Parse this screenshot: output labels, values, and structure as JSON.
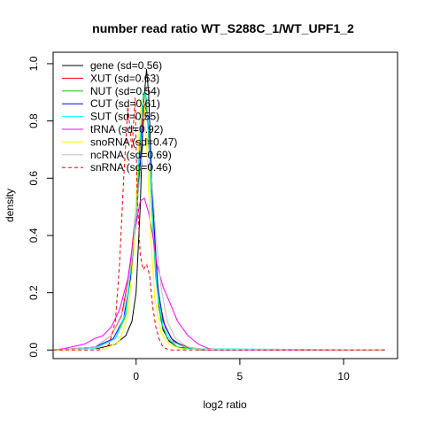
{
  "chart_data": {
    "type": "line",
    "title": "number read ratio WT_S288C_1/WT_UPF1_2",
    "xlabel": "log2 ratio",
    "ylabel": "density",
    "xlim": [
      -4.0,
      12.6
    ],
    "ylim": [
      -0.03,
      1.04
    ],
    "x_ticks": [
      0,
      5,
      10
    ],
    "y_ticks": [
      0.0,
      0.2,
      0.4,
      0.6,
      0.8,
      1.0
    ],
    "x_tick_labels": [
      "0",
      "5",
      "10"
    ],
    "y_tick_labels": [
      "0.0",
      "0.2",
      "0.4",
      "0.6",
      "0.8",
      "1.0"
    ],
    "legend_position": "top-left",
    "grid": false,
    "series": [
      {
        "name": "gene (sd=0.56)",
        "color": "#000000",
        "dash": false,
        "x": [
          -4.0,
          -2.0,
          -1.0,
          -0.5,
          -0.2,
          0.0,
          0.2,
          0.35,
          0.5,
          0.6,
          0.75,
          0.9,
          1.1,
          1.3,
          1.6,
          2.0,
          3.0,
          4.0,
          12.0
        ],
        "y": [
          0,
          0.003,
          0.02,
          0.05,
          0.1,
          0.2,
          0.5,
          0.85,
          0.98,
          0.9,
          0.6,
          0.35,
          0.15,
          0.07,
          0.03,
          0.01,
          0.003,
          0,
          0
        ]
      },
      {
        "name": "XUT (sd=0.63)",
        "color": "#ff0000",
        "dash": false,
        "x": [
          -4.0,
          -2.0,
          -1.2,
          -0.7,
          -0.3,
          0.0,
          0.2,
          0.4,
          0.55,
          0.7,
          0.9,
          1.1,
          1.4,
          1.8,
          2.5,
          3.5,
          12.0
        ],
        "y": [
          0,
          0.01,
          0.05,
          0.12,
          0.28,
          0.5,
          0.72,
          0.86,
          0.82,
          0.6,
          0.35,
          0.18,
          0.08,
          0.03,
          0.01,
          0,
          0
        ]
      },
      {
        "name": "NUT (sd=0.54)",
        "color": "#00cc00",
        "dash": false,
        "x": [
          -4.0,
          -2.0,
          -1.0,
          -0.5,
          -0.2,
          0.1,
          0.3,
          0.45,
          0.6,
          0.75,
          0.95,
          1.2,
          1.5,
          2.0,
          3.0,
          12.0
        ],
        "y": [
          0,
          0.005,
          0.04,
          0.12,
          0.3,
          0.6,
          0.86,
          0.9,
          0.75,
          0.5,
          0.25,
          0.1,
          0.04,
          0.01,
          0,
          0
        ]
      },
      {
        "name": "CUT (sd=0.61)",
        "color": "#0000ff",
        "dash": false,
        "x": [
          -4.0,
          -2.0,
          -1.1,
          -0.6,
          -0.2,
          0.1,
          0.35,
          0.55,
          0.7,
          0.85,
          1.05,
          1.3,
          1.7,
          2.3,
          3.5,
          12.0
        ],
        "y": [
          0,
          0.01,
          0.04,
          0.11,
          0.28,
          0.55,
          0.8,
          0.82,
          0.68,
          0.45,
          0.22,
          0.1,
          0.04,
          0.01,
          0,
          0
        ]
      },
      {
        "name": "SUT (sd=0.55)",
        "color": "#00ffff",
        "dash": false,
        "x": [
          -4.0,
          -2.0,
          -1.0,
          -0.5,
          -0.15,
          0.15,
          0.35,
          0.5,
          0.65,
          0.8,
          1.0,
          1.3,
          1.7,
          2.5,
          12.0
        ],
        "y": [
          0,
          0.005,
          0.04,
          0.13,
          0.35,
          0.7,
          0.9,
          0.88,
          0.7,
          0.45,
          0.22,
          0.08,
          0.03,
          0.005,
          0
        ]
      },
      {
        "name": "tRNA (sd=0.92)",
        "color": "#ff00ff",
        "dash": false,
        "x": [
          -4.0,
          -3.5,
          -2.5,
          -2.0,
          -1.6,
          -1.2,
          -0.8,
          -0.4,
          -0.1,
          0.2,
          0.4,
          0.6,
          0.8,
          1.0,
          1.3,
          1.6,
          2.0,
          2.5,
          3.0,
          3.5,
          4.0,
          12.0
        ],
        "y": [
          0,
          0.005,
          0.02,
          0.04,
          0.05,
          0.08,
          0.14,
          0.25,
          0.4,
          0.52,
          0.53,
          0.48,
          0.4,
          0.3,
          0.22,
          0.17,
          0.1,
          0.05,
          0.02,
          0.005,
          0,
          0
        ]
      },
      {
        "name": "snoRNA (sd=0.47)",
        "color": "#ffff00",
        "dash": false,
        "x": [
          -4.0,
          -1.5,
          -0.8,
          -0.4,
          -0.1,
          0.1,
          0.25,
          0.4,
          0.55,
          0.7,
          0.9,
          1.2,
          1.6,
          2.2,
          12.0
        ],
        "y": [
          0,
          0.003,
          0.03,
          0.12,
          0.35,
          0.7,
          0.88,
          0.85,
          0.65,
          0.4,
          0.18,
          0.06,
          0.02,
          0.003,
          0
        ]
      },
      {
        "name": "ncRNA (sd=0.69)",
        "color": "#bebebe",
        "dash": false,
        "x": [
          -4.0,
          -2.0,
          -1.2,
          -0.6,
          -0.2,
          0.1,
          0.35,
          0.55,
          0.75,
          0.95,
          1.2,
          1.5,
          1.9,
          2.5,
          3.5,
          12.0
        ],
        "y": [
          0,
          0.01,
          0.05,
          0.14,
          0.32,
          0.55,
          0.72,
          0.74,
          0.6,
          0.4,
          0.22,
          0.1,
          0.04,
          0.01,
          0,
          0
        ]
      },
      {
        "name": "snRNA (sd=0.46)",
        "color": "#ff0000",
        "dash": true,
        "x": [
          -4.0,
          -1.8,
          -1.3,
          -1.0,
          -0.8,
          -0.6,
          -0.4,
          -0.2,
          -0.05,
          0.05,
          0.2,
          0.35,
          0.5,
          0.65,
          0.8,
          0.95,
          1.1,
          1.3,
          1.6,
          2.0,
          12.0
        ],
        "y": [
          0,
          0,
          0.02,
          0.1,
          0.3,
          0.6,
          0.85,
          0.7,
          0.88,
          0.55,
          0.33,
          0.28,
          0.3,
          0.26,
          0.15,
          0.08,
          0.04,
          0.01,
          0,
          0,
          0
        ]
      }
    ]
  }
}
